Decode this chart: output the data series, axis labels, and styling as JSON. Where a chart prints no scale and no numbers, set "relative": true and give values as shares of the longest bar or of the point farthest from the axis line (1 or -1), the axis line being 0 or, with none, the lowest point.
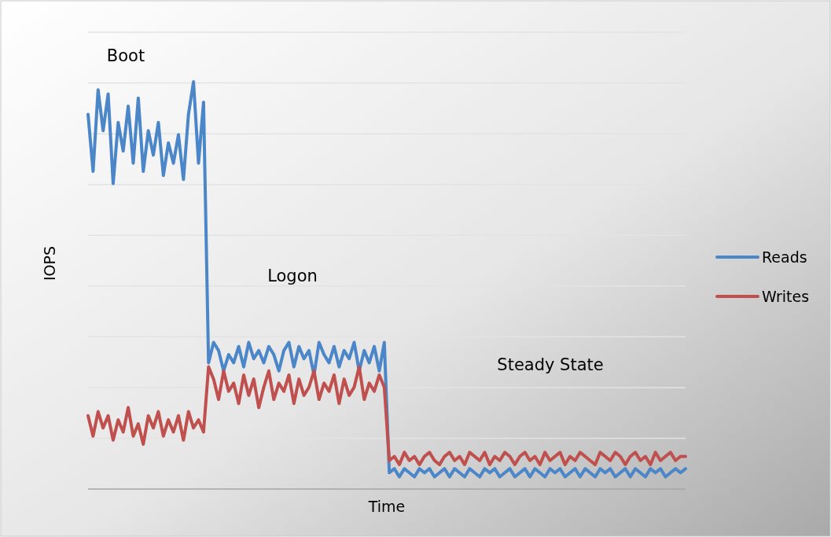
{
  "chart_data": {
    "type": "line",
    "relative": true,
    "xlabel": "Time",
    "ylabel": "IOPS",
    "grid": "y",
    "legend": "right",
    "line_style": "solid",
    "marker": "none",
    "annotations": [
      "Boot",
      "Logon",
      "Steady State"
    ],
    "categories": [
      null,
      null,
      null,
      null,
      null,
      null,
      null,
      null,
      null,
      null,
      null,
      null,
      null,
      null,
      null,
      null,
      null,
      null,
      null,
      null,
      null,
      null,
      null,
      null,
      null,
      null,
      null,
      null,
      null,
      null,
      null,
      null,
      null,
      null,
      null,
      null,
      null,
      null,
      null,
      null,
      null,
      null,
      null,
      null,
      null,
      null,
      null,
      null,
      null,
      null,
      null,
      null,
      null,
      null,
      null,
      null,
      null,
      null,
      null,
      null,
      null,
      null,
      null,
      null,
      null,
      null,
      null,
      null,
      null,
      null,
      null,
      null,
      null,
      null,
      null,
      null,
      null,
      null,
      null,
      null,
      null,
      null,
      null,
      null,
      null,
      null,
      null,
      null,
      null,
      null,
      null,
      null,
      null,
      null,
      null,
      null,
      null,
      null,
      null,
      null,
      null,
      null,
      null,
      null,
      null,
      null,
      null,
      null,
      null,
      null,
      null,
      null,
      null,
      null,
      null,
      null,
      null,
      null,
      null,
      null
    ],
    "series": [
      {
        "name": "Reads",
        "color": "#4a86c8",
        "values": [
          0.92,
          0.78,
          0.98,
          0.88,
          0.97,
          0.75,
          0.9,
          0.83,
          0.94,
          0.8,
          0.96,
          0.78,
          0.88,
          0.82,
          0.9,
          0.77,
          0.85,
          0.8,
          0.87,
          0.76,
          0.92,
          1,
          0.8,
          0.95,
          0.31,
          0.36,
          0.34,
          0.29,
          0.33,
          0.31,
          0.35,
          0.3,
          0.36,
          0.32,
          0.34,
          0.31,
          0.35,
          0.33,
          0.29,
          0.34,
          0.36,
          0.3,
          0.35,
          0.32,
          0.34,
          0.28,
          0.36,
          0.33,
          0.31,
          0.35,
          0.3,
          0.34,
          0.32,
          0.36,
          0.29,
          0.34,
          0.31,
          0.35,
          0.29,
          0.36,
          0.04,
          0.05,
          0.03,
          0.05,
          0.04,
          0.03,
          0.05,
          0.04,
          0.05,
          0.03,
          0.04,
          0.05,
          0.03,
          0.05,
          0.04,
          0.03,
          0.05,
          0.04,
          0.03,
          0.05,
          0.04,
          0.05,
          0.03,
          0.04,
          0.05,
          0.03,
          0.04,
          0.05,
          0.03,
          0.05,
          0.04,
          0.03,
          0.05,
          0.04,
          0.05,
          0.03,
          0.04,
          0.05,
          0.03,
          0.05,
          0.04,
          0.03,
          0.05,
          0.04,
          0.05,
          0.03,
          0.04,
          0.05,
          0.03,
          0.05,
          0.04,
          0.03,
          0.05,
          0.04,
          0.05,
          0.03,
          0.04,
          0.05,
          0.04,
          0.05
        ]
      },
      {
        "name": "Writes",
        "color": "#c0504d",
        "values": [
          0.18,
          0.13,
          0.19,
          0.15,
          0.18,
          0.12,
          0.17,
          0.14,
          0.2,
          0.13,
          0.16,
          0.11,
          0.18,
          0.15,
          0.19,
          0.13,
          0.17,
          0.14,
          0.18,
          0.12,
          0.19,
          0.15,
          0.17,
          0.14,
          0.3,
          0.27,
          0.22,
          0.29,
          0.24,
          0.26,
          0.21,
          0.28,
          0.23,
          0.27,
          0.2,
          0.25,
          0.29,
          0.22,
          0.26,
          0.24,
          0.28,
          0.21,
          0.27,
          0.23,
          0.25,
          0.29,
          0.22,
          0.26,
          0.24,
          0.28,
          0.21,
          0.27,
          0.23,
          0.25,
          0.3,
          0.22,
          0.26,
          0.24,
          0.28,
          0.25,
          0.07,
          0.08,
          0.06,
          0.09,
          0.07,
          0.08,
          0.06,
          0.08,
          0.09,
          0.07,
          0.06,
          0.08,
          0.09,
          0.07,
          0.08,
          0.06,
          0.09,
          0.08,
          0.07,
          0.09,
          0.06,
          0.08,
          0.07,
          0.09,
          0.08,
          0.06,
          0.08,
          0.09,
          0.07,
          0.08,
          0.06,
          0.09,
          0.07,
          0.08,
          0.09,
          0.06,
          0.08,
          0.07,
          0.09,
          0.08,
          0.07,
          0.06,
          0.09,
          0.08,
          0.07,
          0.09,
          0.08,
          0.06,
          0.08,
          0.09,
          0.07,
          0.08,
          0.06,
          0.09,
          0.07,
          0.08,
          0.09,
          0.07,
          0.08,
          0.08
        ]
      }
    ]
  }
}
